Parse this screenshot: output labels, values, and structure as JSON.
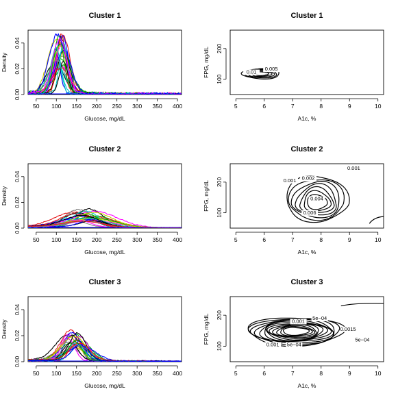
{
  "chart_data": [
    {
      "type": "line",
      "panel": "density",
      "title": "Cluster 1",
      "xlabel": "Glucose, mg/dL",
      "ylabel": "Density",
      "xlim": [
        30,
        410
      ],
      "ylim": [
        0,
        0.05
      ],
      "xticks": [
        "50",
        "100",
        "150",
        "200",
        "250",
        "300",
        "350",
        "400"
      ],
      "yticks": [
        "0.00",
        "0.02",
        "0.04"
      ],
      "peak": {
        "center": 108,
        "spread": 16,
        "max_height": 0.046,
        "min_height": 0.016,
        "count": 30
      }
    },
    {
      "type": "contour",
      "panel": "bivariate",
      "title": "Cluster 1",
      "xlabel": "A1c, %",
      "ylabel": "FPG, mg/dL",
      "xlim": [
        4.8,
        10.2
      ],
      "ylim": [
        50,
        260
      ],
      "xticks": [
        "5",
        "6",
        "7",
        "8",
        "9",
        "10"
      ],
      "yticks": [
        "100",
        "200"
      ],
      "contour_labels": [
        "0.01",
        "0.005"
      ],
      "centers": [
        {
          "a1c": 5.9,
          "fpg": 118,
          "rx": 0.55,
          "ry": 14
        }
      ]
    },
    {
      "type": "line",
      "panel": "density",
      "title": "Cluster 2",
      "xlabel": "Glucose, mg/dL",
      "ylabel": "Density",
      "xlim": [
        30,
        410
      ],
      "ylim": [
        0,
        0.05
      ],
      "xticks": [
        "50",
        "100",
        "150",
        "200",
        "250",
        "300",
        "350",
        "400"
      ],
      "yticks": [
        "0.00",
        "0.02",
        "0.04"
      ],
      "peak": {
        "center": 170,
        "spread": 45,
        "max_height": 0.014,
        "min_height": 0.004,
        "count": 26
      }
    },
    {
      "type": "contour",
      "panel": "bivariate",
      "title": "Cluster 2",
      "xlabel": "A1c, %",
      "ylabel": "FPG, mg/dL",
      "xlim": [
        4.8,
        10.2
      ],
      "ylim": [
        50,
        260
      ],
      "xticks": [
        "5",
        "6",
        "7",
        "8",
        "9",
        "10"
      ],
      "yticks": [
        "100",
        "200"
      ],
      "contour_labels": [
        "0.001",
        "0.001",
        "0.002",
        "0.004",
        "0.006"
      ],
      "centers": [
        {
          "a1c": 7.85,
          "fpg": 130,
          "rx": 0.9,
          "ry": 60
        }
      ]
    },
    {
      "type": "line",
      "panel": "density",
      "title": "Cluster 3",
      "xlabel": "Glucose, mg/dL",
      "ylabel": "Density",
      "xlim": [
        30,
        410
      ],
      "ylim": [
        0,
        0.05
      ],
      "xticks": [
        "50",
        "100",
        "150",
        "200",
        "250",
        "300",
        "350",
        "400"
      ],
      "yticks": [
        "0.00",
        "0.02",
        "0.04"
      ],
      "peak": {
        "center": 145,
        "spread": 25,
        "max_height": 0.023,
        "min_height": 0.009,
        "count": 28
      }
    },
    {
      "type": "contour",
      "panel": "bivariate",
      "title": "Cluster 3",
      "xlabel": "A1c, %",
      "ylabel": "FPG, mg/dL",
      "xlim": [
        4.8,
        10.2
      ],
      "ylim": [
        50,
        260
      ],
      "xticks": [
        "5",
        "6",
        "7",
        "8",
        "9",
        "10"
      ],
      "yticks": [
        "100",
        "200"
      ],
      "contour_labels": [
        "0.001",
        "5e−04",
        "0.0015",
        "5e−04",
        "0.001",
        "5e−04"
      ],
      "centers": [
        {
          "a1c": 7.1,
          "fpg": 148,
          "rx": 1.4,
          "ry": 38
        }
      ]
    }
  ],
  "colors": {
    "curves": [
      "#000000",
      "#e41a1c",
      "#00b000",
      "#0000ff",
      "#00c8c8",
      "#ff00ff",
      "#c8c800",
      "#808080"
    ]
  }
}
